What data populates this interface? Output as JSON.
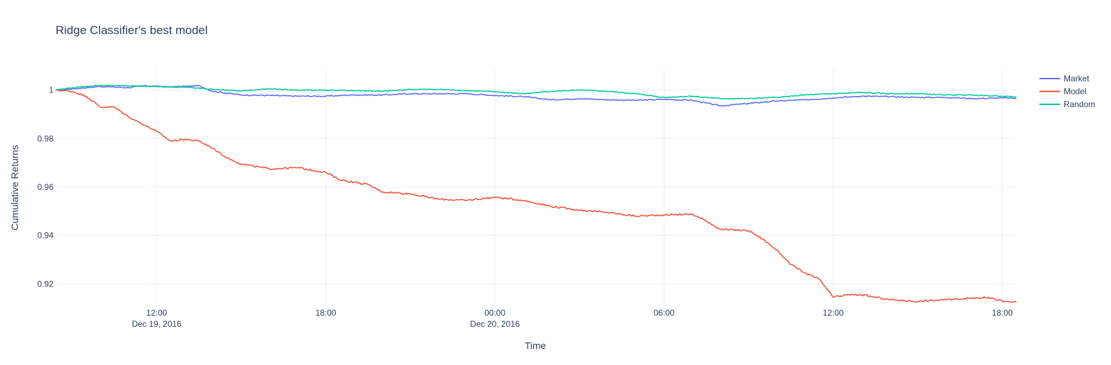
{
  "chart_data": {
    "type": "line",
    "title": "Ridge Classifier's best model",
    "xlabel": "Time",
    "ylabel": "Cumulative Returns",
    "x_range": [
      "2016-12-19 08:25",
      "2016-12-20 18:30"
    ],
    "ylim": [
      0.9095,
      1.0085
    ],
    "x_ticks": [
      {
        "x": "2016-12-19 12:00",
        "label": "12:00",
        "sublabel": "Dec 19, 2016"
      },
      {
        "x": "2016-12-19 18:00",
        "label": "18:00",
        "sublabel": ""
      },
      {
        "x": "2016-12-20 00:00",
        "label": "00:00",
        "sublabel": "Dec 20, 2016"
      },
      {
        "x": "2016-12-20 06:00",
        "label": "06:00",
        "sublabel": ""
      },
      {
        "x": "2016-12-20 12:00",
        "label": "12:00",
        "sublabel": ""
      },
      {
        "x": "2016-12-20 18:00",
        "label": "18:00",
        "sublabel": ""
      }
    ],
    "y_ticks": [
      {
        "y": 0.92,
        "label": "0.92"
      },
      {
        "y": 0.94,
        "label": "0.94"
      },
      {
        "y": 0.96,
        "label": "0.96"
      },
      {
        "y": 0.98,
        "label": "0.98"
      },
      {
        "y": 1.0,
        "label": "1"
      }
    ],
    "grid": true,
    "legend_position": "top-right",
    "series": [
      {
        "name": "Market",
        "color": "#636efa",
        "points": [
          [
            "2016-12-19 08:25",
            1.0
          ],
          [
            "2016-12-19 09:00",
            1.0005
          ],
          [
            "2016-12-19 10:00",
            1.0015
          ],
          [
            "2016-12-19 11:00",
            1.001
          ],
          [
            "2016-12-19 11:30",
            1.0018
          ],
          [
            "2016-12-19 12:30",
            1.0013
          ],
          [
            "2016-12-19 13:30",
            1.0018
          ],
          [
            "2016-12-19 14:00",
            0.9995
          ],
          [
            "2016-12-19 15:00",
            0.998
          ],
          [
            "2016-12-19 16:00",
            0.9978
          ],
          [
            "2016-12-19 17:00",
            0.9975
          ],
          [
            "2016-12-19 18:00",
            0.9975
          ],
          [
            "2016-12-19 19:00",
            0.998
          ],
          [
            "2016-12-19 20:00",
            0.998
          ],
          [
            "2016-12-19 21:00",
            0.9985
          ],
          [
            "2016-12-19 22:00",
            0.9985
          ],
          [
            "2016-12-19 23:00",
            0.9985
          ],
          [
            "2016-12-20 00:00",
            0.9978
          ],
          [
            "2016-12-20 01:00",
            0.9973
          ],
          [
            "2016-12-20 02:00",
            0.996
          ],
          [
            "2016-12-20 03:00",
            0.9965
          ],
          [
            "2016-12-20 04:00",
            0.996
          ],
          [
            "2016-12-20 05:00",
            0.9958
          ],
          [
            "2016-12-20 06:00",
            0.9962
          ],
          [
            "2016-12-20 07:00",
            0.9958
          ],
          [
            "2016-12-20 08:00",
            0.9935
          ],
          [
            "2016-12-20 09:00",
            0.9945
          ],
          [
            "2016-12-20 10:00",
            0.9955
          ],
          [
            "2016-12-20 11:00",
            0.996
          ],
          [
            "2016-12-20 12:00",
            0.9968
          ],
          [
            "2016-12-20 13:00",
            0.9975
          ],
          [
            "2016-12-20 14:00",
            0.9973
          ],
          [
            "2016-12-20 15:00",
            0.997
          ],
          [
            "2016-12-20 16:00",
            0.997
          ],
          [
            "2016-12-20 17:00",
            0.9965
          ],
          [
            "2016-12-20 18:00",
            0.9968
          ],
          [
            "2016-12-20 18:30",
            0.9966
          ]
        ]
      },
      {
        "name": "Model",
        "color": "#ef553b",
        "points": [
          [
            "2016-12-19 08:25",
            1.0
          ],
          [
            "2016-12-19 09:00",
            0.9995
          ],
          [
            "2016-12-19 09:30",
            0.9975
          ],
          [
            "2016-12-19 10:00",
            0.993
          ],
          [
            "2016-12-19 10:30",
            0.993
          ],
          [
            "2016-12-19 11:00",
            0.989
          ],
          [
            "2016-12-19 11:30",
            0.986
          ],
          [
            "2016-12-19 12:00",
            0.983
          ],
          [
            "2016-12-19 12:30",
            0.979
          ],
          [
            "2016-12-19 13:00",
            0.9797
          ],
          [
            "2016-12-19 13:30",
            0.979
          ],
          [
            "2016-12-19 14:00",
            0.976
          ],
          [
            "2016-12-19 14:30",
            0.972
          ],
          [
            "2016-12-19 15:00",
            0.9695
          ],
          [
            "2016-12-19 16:00",
            0.9675
          ],
          [
            "2016-12-19 17:00",
            0.968
          ],
          [
            "2016-12-19 18:00",
            0.966
          ],
          [
            "2016-12-19 18:30",
            0.963
          ],
          [
            "2016-12-19 19:00",
            0.962
          ],
          [
            "2016-12-19 19:30",
            0.961
          ],
          [
            "2016-12-19 20:00",
            0.958
          ],
          [
            "2016-12-19 21:00",
            0.9572
          ],
          [
            "2016-12-19 22:00",
            0.955
          ],
          [
            "2016-12-19 23:00",
            0.9545
          ],
          [
            "2016-12-20 00:00",
            0.9558
          ],
          [
            "2016-12-20 01:00",
            0.9545
          ],
          [
            "2016-12-20 02:00",
            0.952
          ],
          [
            "2016-12-20 03:00",
            0.9505
          ],
          [
            "2016-12-20 04:00",
            0.9495
          ],
          [
            "2016-12-20 05:00",
            0.948
          ],
          [
            "2016-12-20 06:00",
            0.9485
          ],
          [
            "2016-12-20 07:00",
            0.9488
          ],
          [
            "2016-12-20 07:30",
            0.946
          ],
          [
            "2016-12-20 08:00",
            0.9425
          ],
          [
            "2016-12-20 09:00",
            0.942
          ],
          [
            "2016-12-20 09:30",
            0.9385
          ],
          [
            "2016-12-20 10:00",
            0.934
          ],
          [
            "2016-12-20 10:30",
            0.928
          ],
          [
            "2016-12-20 11:00",
            0.9245
          ],
          [
            "2016-12-20 11:30",
            0.922
          ],
          [
            "2016-12-20 12:00",
            0.9145
          ],
          [
            "2016-12-20 12:30",
            0.9155
          ],
          [
            "2016-12-20 13:00",
            0.9155
          ],
          [
            "2016-12-20 13:30",
            0.9145
          ],
          [
            "2016-12-20 14:00",
            0.9135
          ],
          [
            "2016-12-20 15:00",
            0.9128
          ],
          [
            "2016-12-20 16:00",
            0.9135
          ],
          [
            "2016-12-20 17:00",
            0.9142
          ],
          [
            "2016-12-20 17:30",
            0.9145
          ],
          [
            "2016-12-20 18:00",
            0.9128
          ],
          [
            "2016-12-20 18:30",
            0.9125
          ]
        ]
      },
      {
        "name": "Random",
        "color": "#00cc96",
        "points": [
          [
            "2016-12-19 08:25",
            1.0
          ],
          [
            "2016-12-19 09:00",
            1.001
          ],
          [
            "2016-12-19 10:00",
            1.002
          ],
          [
            "2016-12-19 11:00",
            1.0017
          ],
          [
            "2016-12-19 12:00",
            1.0015
          ],
          [
            "2016-12-19 13:00",
            1.0012
          ],
          [
            "2016-12-19 14:00",
            1.0003
          ],
          [
            "2016-12-19 15:00",
            0.9997
          ],
          [
            "2016-12-19 16:00",
            1.0005
          ],
          [
            "2016-12-19 17:00",
            1.0
          ],
          [
            "2016-12-19 18:00",
            1.0
          ],
          [
            "2016-12-19 19:00",
            0.9998
          ],
          [
            "2016-12-19 20:00",
            0.9995
          ],
          [
            "2016-12-19 21:00",
            1.0003
          ],
          [
            "2016-12-19 22:00",
            1.0003
          ],
          [
            "2016-12-19 23:00",
            0.9998
          ],
          [
            "2016-12-20 00:00",
            0.9993
          ],
          [
            "2016-12-20 01:00",
            0.9985
          ],
          [
            "2016-12-20 02:00",
            0.9995
          ],
          [
            "2016-12-20 03:00",
            1.0
          ],
          [
            "2016-12-20 04:00",
            0.9995
          ],
          [
            "2016-12-20 05:00",
            0.9985
          ],
          [
            "2016-12-20 06:00",
            0.997
          ],
          [
            "2016-12-20 07:00",
            0.9975
          ],
          [
            "2016-12-20 08:00",
            0.9965
          ],
          [
            "2016-12-20 09:00",
            0.9965
          ],
          [
            "2016-12-20 10:00",
            0.997
          ],
          [
            "2016-12-20 11:00",
            0.998
          ],
          [
            "2016-12-20 12:00",
            0.9985
          ],
          [
            "2016-12-20 13:00",
            0.999
          ],
          [
            "2016-12-20 14:00",
            0.9985
          ],
          [
            "2016-12-20 15:00",
            0.9985
          ],
          [
            "2016-12-20 16:00",
            0.998
          ],
          [
            "2016-12-20 17:00",
            0.998
          ],
          [
            "2016-12-20 18:00",
            0.9975
          ],
          [
            "2016-12-20 18:30",
            0.9972
          ]
        ]
      }
    ]
  }
}
